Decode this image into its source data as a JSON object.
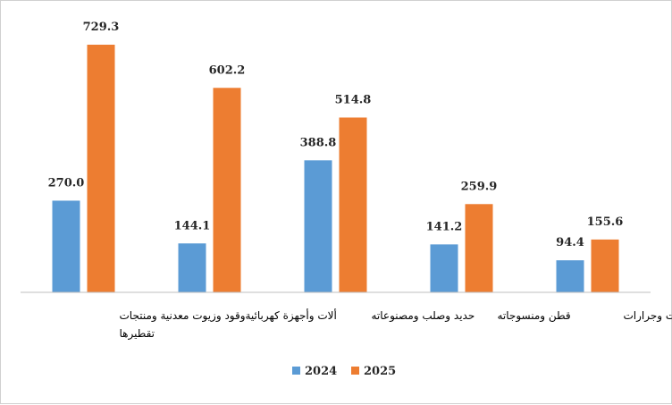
{
  "chart_data": {
    "type": "bar",
    "categories": [
      [
        "وقود وزيوت معدنية ومنتجات",
        "تقطيرها"
      ],
      [
        "ألات وأجهزة كهربائية"
      ],
      [
        "حديد وصلب ومصنوعاته"
      ],
      [
        "قطن ومنسوجاته"
      ],
      [
        "سيارات وجرارات"
      ]
    ],
    "series": [
      {
        "name": "2024",
        "color": "#5b9bd5",
        "values": [
          270.0,
          144.1,
          388.8,
          141.2,
          94.4
        ],
        "labels": [
          "270.0",
          "144.1",
          "388.8",
          "141.2",
          "94.4"
        ]
      },
      {
        "name": "2025",
        "color": "#ed7d31",
        "values": [
          729.3,
          602.2,
          514.8,
          259.9,
          155.6
        ],
        "labels": [
          "729.3",
          "602.2",
          "514.8",
          "259.9",
          "155.6"
        ]
      }
    ],
    "ylim": [
      0,
      729.3
    ],
    "grid": false,
    "legend_position": "bottom",
    "axis_color": "#bfbfbf"
  }
}
